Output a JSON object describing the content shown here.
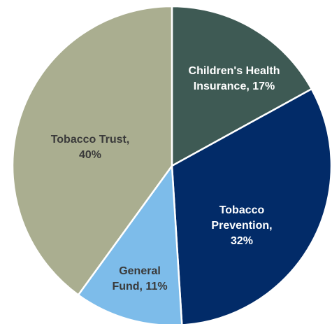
{
  "chart_data": {
    "type": "pie",
    "title": "",
    "start_angle": "12 o'clock",
    "direction": "clockwise",
    "slices": [
      {
        "name": "Children's Health Insurance",
        "value": 17,
        "label_lines": [
          "Children's Health",
          "Insurance, 17%"
        ],
        "color": "#3E5A54",
        "label_color": "#ffffff"
      },
      {
        "name": "Tobacco Prevention",
        "value": 32,
        "label_lines": [
          "Tobacco",
          "Prevention,",
          "32%"
        ],
        "color": "#022B68",
        "label_color": "#ffffff"
      },
      {
        "name": "General Fund",
        "value": 11,
        "label_lines": [
          "General",
          "Fund, 11%"
        ],
        "color": "#7DBCEA",
        "label_color": "#3a3a3a"
      },
      {
        "name": "Tobacco Trust",
        "value": 40,
        "label_lines": [
          "Tobacco Trust,",
          "40%"
        ],
        "color": "#AAAE90",
        "label_color": "#3a3a3a"
      }
    ]
  }
}
